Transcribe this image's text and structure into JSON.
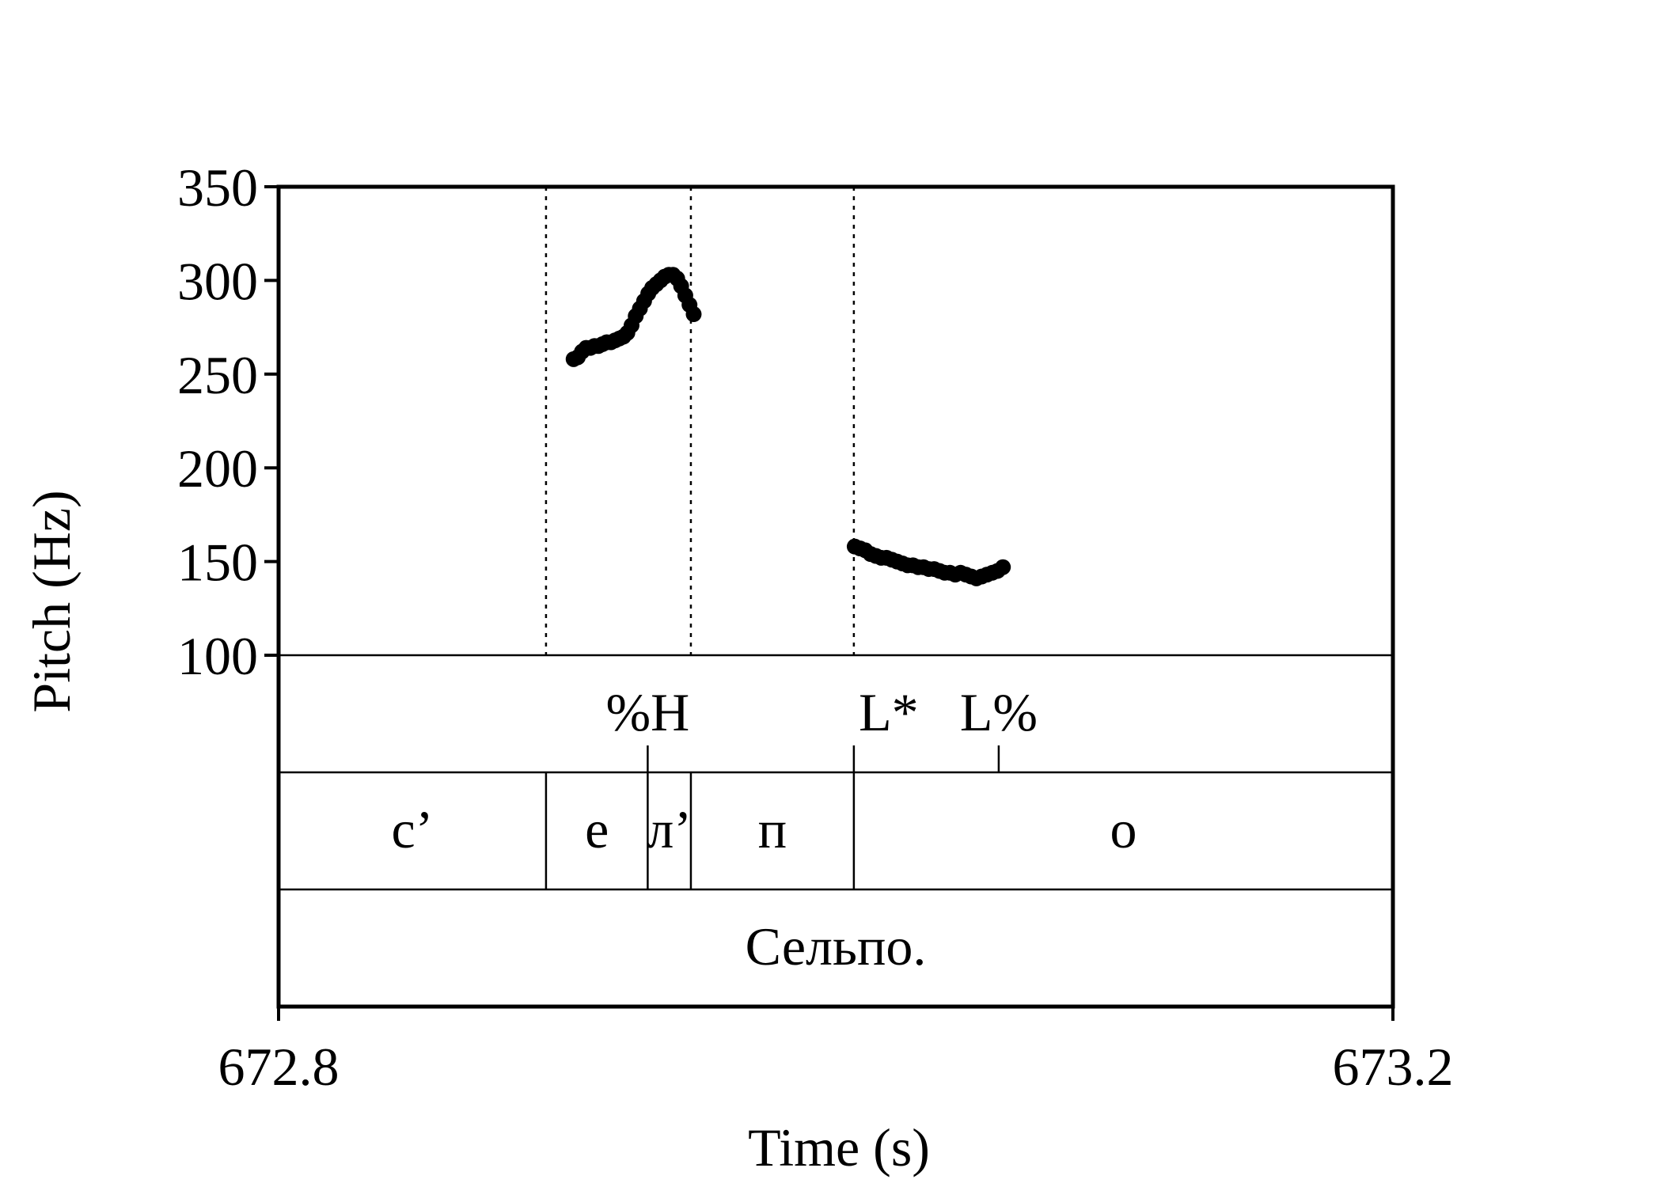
{
  "chart_data": {
    "type": "line",
    "title": "",
    "xlabel": "Time (s)",
    "ylabel": "Pitch (Hz)",
    "xlim": [
      672.8,
      673.2
    ],
    "ylim": [
      100,
      350
    ],
    "x_tick_labels": [
      "672.8",
      "673.2"
    ],
    "y_ticks": [
      100,
      150,
      200,
      250,
      300,
      350
    ],
    "y_tick_labels": [
      "100",
      "150",
      "200",
      "250",
      "300",
      "350"
    ],
    "grid": false,
    "series": [
      {
        "points": [
          [
            672.9059,
            258
          ],
          [
            672.9074,
            259
          ],
          [
            672.9089,
            262
          ],
          [
            672.9104,
            264
          ],
          [
            672.9119,
            264
          ],
          [
            672.9134,
            265
          ],
          [
            672.9148,
            265
          ],
          [
            672.9163,
            266
          ],
          [
            672.9178,
            267
          ],
          [
            672.9193,
            267
          ],
          [
            672.9208,
            268
          ],
          [
            672.9223,
            269
          ],
          [
            672.9238,
            270
          ],
          [
            672.9252,
            272
          ],
          [
            672.9267,
            276
          ],
          [
            672.9282,
            281
          ],
          [
            672.9297,
            285
          ],
          [
            672.9312,
            289
          ],
          [
            672.9327,
            293
          ],
          [
            672.9341,
            296
          ],
          [
            672.9356,
            298
          ],
          [
            672.9371,
            300
          ],
          [
            672.9386,
            302
          ],
          [
            672.9401,
            303
          ],
          [
            672.9416,
            303
          ],
          [
            672.9431,
            301
          ],
          [
            672.9445,
            297
          ],
          [
            672.946,
            292
          ],
          [
            672.9475,
            287
          ],
          [
            672.949,
            282
          ]
        ]
      },
      {
        "points": [
          [
            673.0068,
            158
          ],
          [
            673.0087,
            157
          ],
          [
            673.0106,
            156
          ],
          [
            673.0125,
            154
          ],
          [
            673.0144,
            153
          ],
          [
            673.0163,
            152
          ],
          [
            673.0182,
            152
          ],
          [
            673.0201,
            151
          ],
          [
            673.022,
            150
          ],
          [
            673.0239,
            149
          ],
          [
            673.0258,
            148
          ],
          [
            673.0277,
            148
          ],
          [
            673.0296,
            147
          ],
          [
            673.0315,
            147
          ],
          [
            673.0334,
            146
          ],
          [
            673.0353,
            146
          ],
          [
            673.0372,
            145
          ],
          [
            673.0391,
            144
          ],
          [
            673.041,
            144
          ],
          [
            673.0429,
            143
          ],
          [
            673.0448,
            144
          ],
          [
            673.0467,
            143
          ],
          [
            673.0486,
            142
          ],
          [
            673.0505,
            141
          ],
          [
            673.0524,
            142
          ],
          [
            673.0543,
            143
          ],
          [
            673.0562,
            144
          ],
          [
            673.0581,
            145
          ],
          [
            673.06,
            147
          ]
        ]
      }
    ],
    "boundaries": [
      672.896,
      672.948,
      673.0065
    ],
    "tiers": [
      {
        "name": "tones",
        "type": "point",
        "items": [
          {
            "time": 672.9325,
            "label": "%H",
            "anchor": "middle"
          },
          {
            "time": 673.0065,
            "label": "L*",
            "anchor": "end"
          },
          {
            "time": 673.0585,
            "label": "L%",
            "anchor": "middle"
          }
        ]
      },
      {
        "name": "segments",
        "type": "interval",
        "boundaries": [
          672.896,
          672.9325,
          672.948,
          673.0065
        ],
        "items": [
          "с’",
          "е",
          "л’",
          "п",
          "о"
        ]
      },
      {
        "name": "words",
        "type": "interval",
        "boundaries": [],
        "items": [
          "Сельпо."
        ]
      }
    ]
  }
}
